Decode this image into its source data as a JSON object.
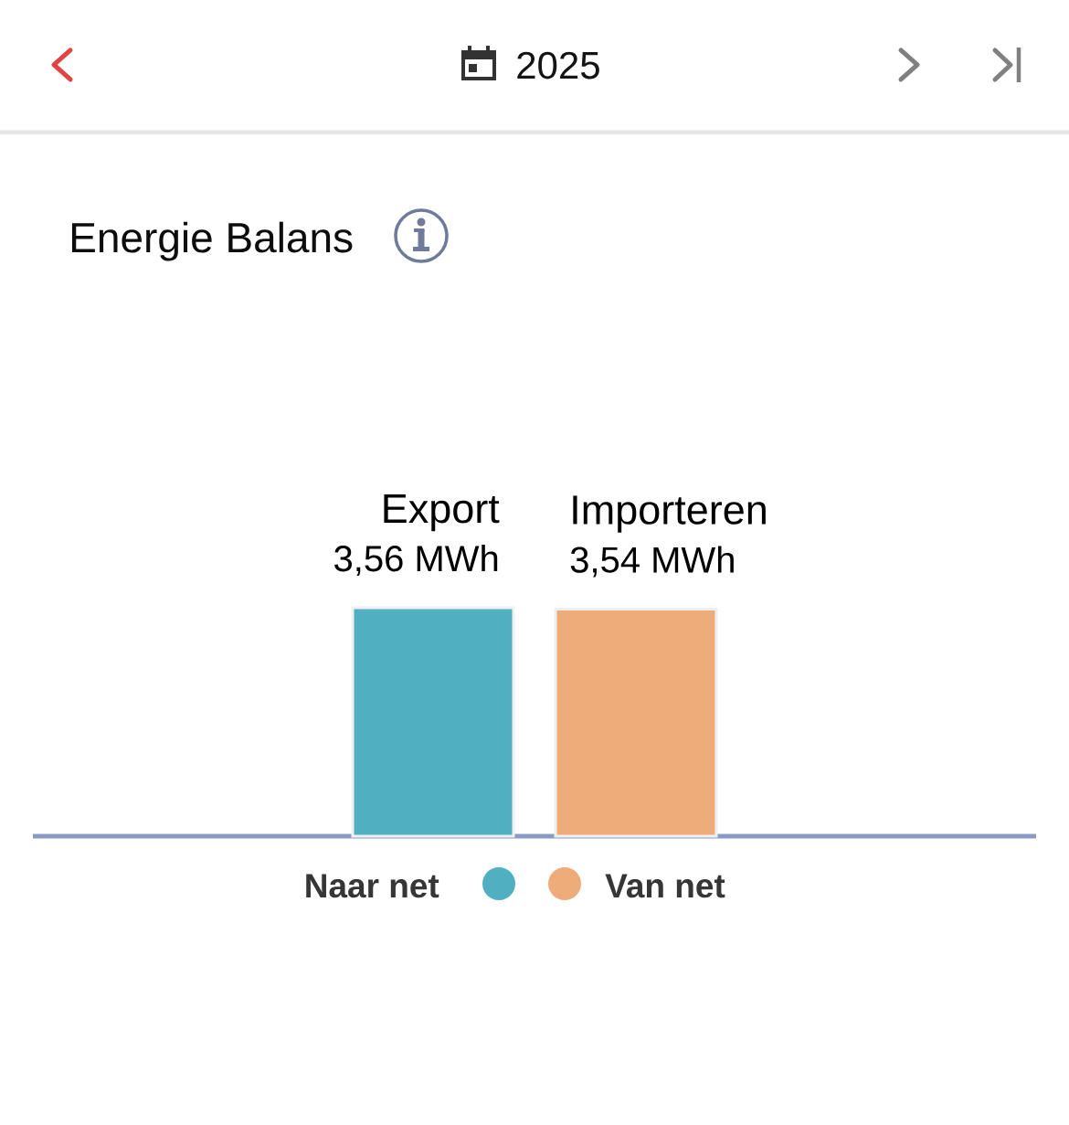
{
  "chart_data": {
    "type": "bar",
    "title": "Energie Balans",
    "subtitle": "2025",
    "categories": [
      "Export",
      "Importeren"
    ],
    "series": [
      {
        "name": "Naar net",
        "color": "#50b0c1",
        "values": [
          3.56,
          null
        ],
        "value_labels": [
          "3,56 MWh",
          null
        ]
      },
      {
        "name": "Van net",
        "color": "#eeac7a",
        "values": [
          null,
          3.54
        ],
        "value_labels": [
          null,
          "3,54 MWh"
        ]
      }
    ],
    "tick_labels": "x",
    "legend": "bottom"
  }
}
